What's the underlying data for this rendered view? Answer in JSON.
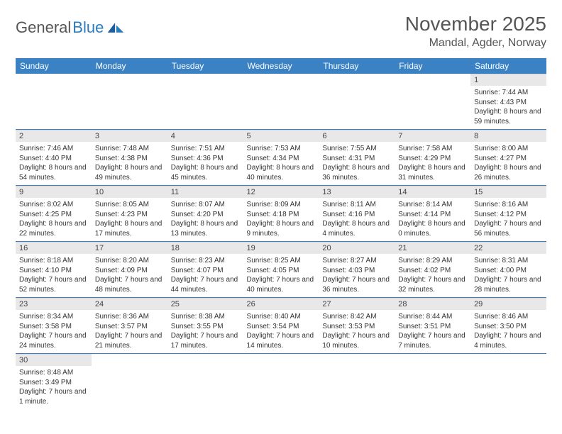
{
  "logo": {
    "part1": "General",
    "part2": "Blue"
  },
  "header": {
    "title": "November 2025",
    "location": "Mandal, Agder, Norway"
  },
  "colors": {
    "header_bg": "#3b82c4",
    "header_text": "#ffffff",
    "daynum_bg": "#e8e8e8",
    "row_border": "#3b82c4",
    "logo_gray": "#555555",
    "logo_blue": "#2b7bbf",
    "text": "#333333",
    "background": "#ffffff"
  },
  "typography": {
    "title_fontsize": 28,
    "location_fontsize": 16,
    "dayheader_fontsize": 12,
    "daynum_fontsize": 11,
    "cell_fontsize": 10
  },
  "day_headers": [
    "Sunday",
    "Monday",
    "Tuesday",
    "Wednesday",
    "Thursday",
    "Friday",
    "Saturday"
  ],
  "weeks": [
    [
      null,
      null,
      null,
      null,
      null,
      null,
      {
        "n": "1",
        "sunrise": "Sunrise: 7:44 AM",
        "sunset": "Sunset: 4:43 PM",
        "daylight": "Daylight: 8 hours and 59 minutes."
      }
    ],
    [
      {
        "n": "2",
        "sunrise": "Sunrise: 7:46 AM",
        "sunset": "Sunset: 4:40 PM",
        "daylight": "Daylight: 8 hours and 54 minutes."
      },
      {
        "n": "3",
        "sunrise": "Sunrise: 7:48 AM",
        "sunset": "Sunset: 4:38 PM",
        "daylight": "Daylight: 8 hours and 49 minutes."
      },
      {
        "n": "4",
        "sunrise": "Sunrise: 7:51 AM",
        "sunset": "Sunset: 4:36 PM",
        "daylight": "Daylight: 8 hours and 45 minutes."
      },
      {
        "n": "5",
        "sunrise": "Sunrise: 7:53 AM",
        "sunset": "Sunset: 4:34 PM",
        "daylight": "Daylight: 8 hours and 40 minutes."
      },
      {
        "n": "6",
        "sunrise": "Sunrise: 7:55 AM",
        "sunset": "Sunset: 4:31 PM",
        "daylight": "Daylight: 8 hours and 36 minutes."
      },
      {
        "n": "7",
        "sunrise": "Sunrise: 7:58 AM",
        "sunset": "Sunset: 4:29 PM",
        "daylight": "Daylight: 8 hours and 31 minutes."
      },
      {
        "n": "8",
        "sunrise": "Sunrise: 8:00 AM",
        "sunset": "Sunset: 4:27 PM",
        "daylight": "Daylight: 8 hours and 26 minutes."
      }
    ],
    [
      {
        "n": "9",
        "sunrise": "Sunrise: 8:02 AM",
        "sunset": "Sunset: 4:25 PM",
        "daylight": "Daylight: 8 hours and 22 minutes."
      },
      {
        "n": "10",
        "sunrise": "Sunrise: 8:05 AM",
        "sunset": "Sunset: 4:23 PM",
        "daylight": "Daylight: 8 hours and 17 minutes."
      },
      {
        "n": "11",
        "sunrise": "Sunrise: 8:07 AM",
        "sunset": "Sunset: 4:20 PM",
        "daylight": "Daylight: 8 hours and 13 minutes."
      },
      {
        "n": "12",
        "sunrise": "Sunrise: 8:09 AM",
        "sunset": "Sunset: 4:18 PM",
        "daylight": "Daylight: 8 hours and 9 minutes."
      },
      {
        "n": "13",
        "sunrise": "Sunrise: 8:11 AM",
        "sunset": "Sunset: 4:16 PM",
        "daylight": "Daylight: 8 hours and 4 minutes."
      },
      {
        "n": "14",
        "sunrise": "Sunrise: 8:14 AM",
        "sunset": "Sunset: 4:14 PM",
        "daylight": "Daylight: 8 hours and 0 minutes."
      },
      {
        "n": "15",
        "sunrise": "Sunrise: 8:16 AM",
        "sunset": "Sunset: 4:12 PM",
        "daylight": "Daylight: 7 hours and 56 minutes."
      }
    ],
    [
      {
        "n": "16",
        "sunrise": "Sunrise: 8:18 AM",
        "sunset": "Sunset: 4:10 PM",
        "daylight": "Daylight: 7 hours and 52 minutes."
      },
      {
        "n": "17",
        "sunrise": "Sunrise: 8:20 AM",
        "sunset": "Sunset: 4:09 PM",
        "daylight": "Daylight: 7 hours and 48 minutes."
      },
      {
        "n": "18",
        "sunrise": "Sunrise: 8:23 AM",
        "sunset": "Sunset: 4:07 PM",
        "daylight": "Daylight: 7 hours and 44 minutes."
      },
      {
        "n": "19",
        "sunrise": "Sunrise: 8:25 AM",
        "sunset": "Sunset: 4:05 PM",
        "daylight": "Daylight: 7 hours and 40 minutes."
      },
      {
        "n": "20",
        "sunrise": "Sunrise: 8:27 AM",
        "sunset": "Sunset: 4:03 PM",
        "daylight": "Daylight: 7 hours and 36 minutes."
      },
      {
        "n": "21",
        "sunrise": "Sunrise: 8:29 AM",
        "sunset": "Sunset: 4:02 PM",
        "daylight": "Daylight: 7 hours and 32 minutes."
      },
      {
        "n": "22",
        "sunrise": "Sunrise: 8:31 AM",
        "sunset": "Sunset: 4:00 PM",
        "daylight": "Daylight: 7 hours and 28 minutes."
      }
    ],
    [
      {
        "n": "23",
        "sunrise": "Sunrise: 8:34 AM",
        "sunset": "Sunset: 3:58 PM",
        "daylight": "Daylight: 7 hours and 24 minutes."
      },
      {
        "n": "24",
        "sunrise": "Sunrise: 8:36 AM",
        "sunset": "Sunset: 3:57 PM",
        "daylight": "Daylight: 7 hours and 21 minutes."
      },
      {
        "n": "25",
        "sunrise": "Sunrise: 8:38 AM",
        "sunset": "Sunset: 3:55 PM",
        "daylight": "Daylight: 7 hours and 17 minutes."
      },
      {
        "n": "26",
        "sunrise": "Sunrise: 8:40 AM",
        "sunset": "Sunset: 3:54 PM",
        "daylight": "Daylight: 7 hours and 14 minutes."
      },
      {
        "n": "27",
        "sunrise": "Sunrise: 8:42 AM",
        "sunset": "Sunset: 3:53 PM",
        "daylight": "Daylight: 7 hours and 10 minutes."
      },
      {
        "n": "28",
        "sunrise": "Sunrise: 8:44 AM",
        "sunset": "Sunset: 3:51 PM",
        "daylight": "Daylight: 7 hours and 7 minutes."
      },
      {
        "n": "29",
        "sunrise": "Sunrise: 8:46 AM",
        "sunset": "Sunset: 3:50 PM",
        "daylight": "Daylight: 7 hours and 4 minutes."
      }
    ],
    [
      {
        "n": "30",
        "sunrise": "Sunrise: 8:48 AM",
        "sunset": "Sunset: 3:49 PM",
        "daylight": "Daylight: 7 hours and 1 minute."
      },
      null,
      null,
      null,
      null,
      null,
      null
    ]
  ]
}
